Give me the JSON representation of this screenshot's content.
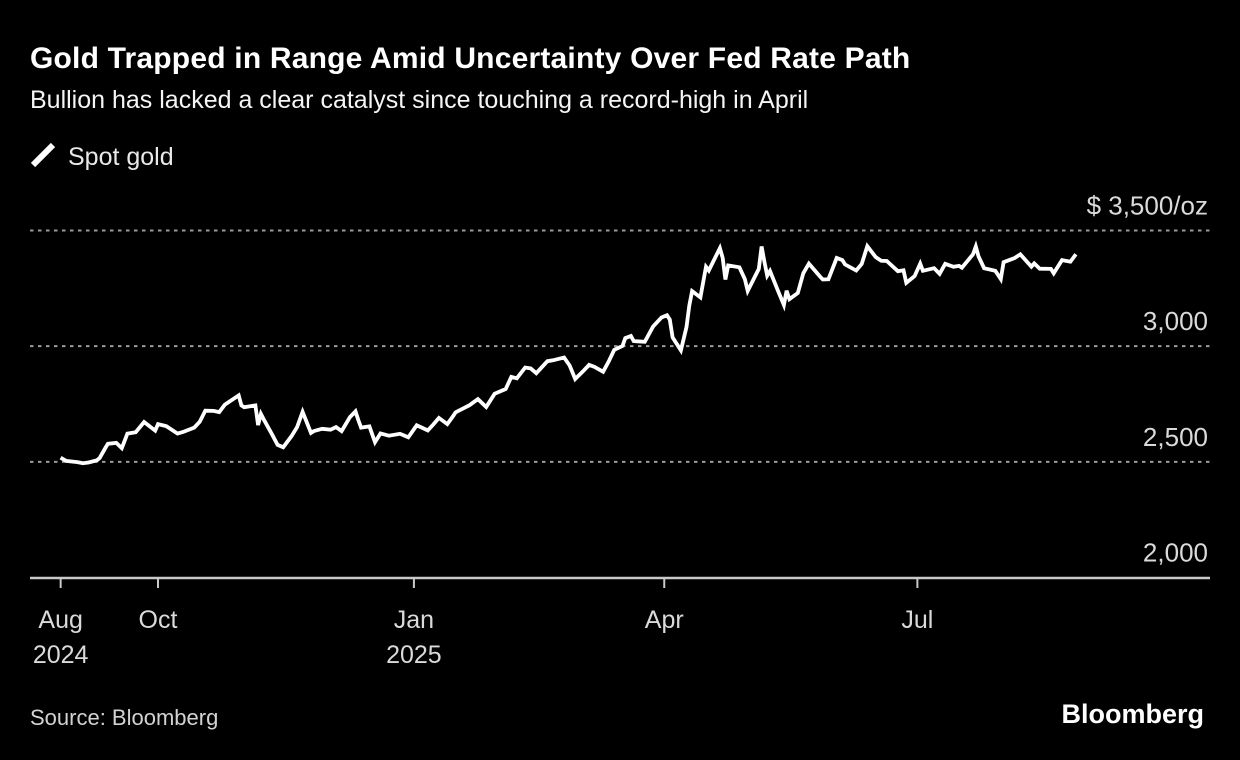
{
  "colors": {
    "background": "#000000",
    "series_line": "#ffffff",
    "gridline": "#9a9a9a",
    "axis": "#c9c9c9",
    "label_text": "#dadada"
  },
  "footer": {
    "source": "Source: Bloomberg",
    "logo": "Bloomberg"
  },
  "chart_data": {
    "type": "line",
    "title": "Gold Trapped in Range Amid Uncertainty Over Fed Rate Path",
    "subtitle": "Bullion has lacked a clear catalyst since touching a record-high in April",
    "legend": {
      "swatch_icon": "diagonal-line-icon",
      "label": "Spot gold",
      "position": "top-left"
    },
    "grid": "horizontal-dotted",
    "y_axis": {
      "side": "right",
      "range": [
        2000,
        3560
      ],
      "ticks": [
        {
          "value": 3500,
          "label": "$ 3,500/oz",
          "grid": "dotted"
        },
        {
          "value": 3000,
          "label": "3,000",
          "grid": "dotted"
        },
        {
          "value": 2500,
          "label": "2,500",
          "grid": "dotted"
        },
        {
          "value": 2000,
          "label": "2,000",
          "grid": "baseline"
        }
      ]
    },
    "x_axis": {
      "side": "bottom",
      "ticks": [
        {
          "date": "2024-08-27",
          "label": "Aug",
          "sublabel": "2024"
        },
        {
          "date": "2024-10-01",
          "label": "Oct",
          "sublabel": ""
        },
        {
          "date": "2025-01-01",
          "label": "Jan",
          "sublabel": "2025"
        },
        {
          "date": "2025-04-01",
          "label": "Apr",
          "sublabel": ""
        },
        {
          "date": "2025-07-01",
          "label": "Jul",
          "sublabel": ""
        }
      ]
    },
    "series": [
      {
        "name": "Spot gold",
        "color": "#ffffff",
        "points": [
          [
            "2024-08-27",
            2518
          ],
          [
            "2024-08-29",
            2504
          ],
          [
            "2024-09-02",
            2499
          ],
          [
            "2024-09-04",
            2494
          ],
          [
            "2024-09-06",
            2497
          ],
          [
            "2024-09-09",
            2506
          ],
          [
            "2024-09-10",
            2516
          ],
          [
            "2024-09-12",
            2558
          ],
          [
            "2024-09-13",
            2578
          ],
          [
            "2024-09-16",
            2582
          ],
          [
            "2024-09-18",
            2559
          ],
          [
            "2024-09-20",
            2622
          ],
          [
            "2024-09-23",
            2628
          ],
          [
            "2024-09-26",
            2672
          ],
          [
            "2024-09-30",
            2635
          ],
          [
            "2024-10-01",
            2663
          ],
          [
            "2024-10-04",
            2654
          ],
          [
            "2024-10-08",
            2622
          ],
          [
            "2024-10-10",
            2629
          ],
          [
            "2024-10-14",
            2648
          ],
          [
            "2024-10-16",
            2673
          ],
          [
            "2024-10-18",
            2721
          ],
          [
            "2024-10-21",
            2720
          ],
          [
            "2024-10-23",
            2715
          ],
          [
            "2024-10-25",
            2747
          ],
          [
            "2024-10-30",
            2787
          ],
          [
            "2024-10-31",
            2744
          ],
          [
            "2024-11-01",
            2736
          ],
          [
            "2024-11-05",
            2744
          ],
          [
            "2024-11-06",
            2659
          ],
          [
            "2024-11-07",
            2707
          ],
          [
            "2024-11-08",
            2684
          ],
          [
            "2024-11-11",
            2619
          ],
          [
            "2024-11-13",
            2573
          ],
          [
            "2024-11-15",
            2563
          ],
          [
            "2024-11-18",
            2611
          ],
          [
            "2024-11-20",
            2650
          ],
          [
            "2024-11-22",
            2716
          ],
          [
            "2024-11-25",
            2625
          ],
          [
            "2024-11-26",
            2633
          ],
          [
            "2024-11-29",
            2643
          ],
          [
            "2024-12-02",
            2639
          ],
          [
            "2024-12-04",
            2650
          ],
          [
            "2024-12-06",
            2633
          ],
          [
            "2024-12-09",
            2693
          ],
          [
            "2024-12-11",
            2718
          ],
          [
            "2024-12-12",
            2681
          ],
          [
            "2024-12-13",
            2648
          ],
          [
            "2024-12-16",
            2653
          ],
          [
            "2024-12-18",
            2585
          ],
          [
            "2024-12-20",
            2623
          ],
          [
            "2024-12-23",
            2613
          ],
          [
            "2024-12-27",
            2621
          ],
          [
            "2024-12-30",
            2606
          ],
          [
            "2025-01-02",
            2658
          ],
          [
            "2025-01-06",
            2636
          ],
          [
            "2025-01-08",
            2662
          ],
          [
            "2025-01-10",
            2690
          ],
          [
            "2025-01-13",
            2663
          ],
          [
            "2025-01-15",
            2696
          ],
          [
            "2025-01-16",
            2714
          ],
          [
            "2025-01-21",
            2745
          ],
          [
            "2025-01-24",
            2771
          ],
          [
            "2025-01-27",
            2737
          ],
          [
            "2025-01-30",
            2794
          ],
          [
            "2025-02-03",
            2815
          ],
          [
            "2025-02-05",
            2867
          ],
          [
            "2025-02-07",
            2861
          ],
          [
            "2025-02-10",
            2908
          ],
          [
            "2025-02-12",
            2904
          ],
          [
            "2025-02-14",
            2883
          ],
          [
            "2025-02-18",
            2935
          ],
          [
            "2025-02-20",
            2939
          ],
          [
            "2025-02-24",
            2951
          ],
          [
            "2025-02-26",
            2916
          ],
          [
            "2025-02-28",
            2858
          ],
          [
            "2025-03-03",
            2894
          ],
          [
            "2025-03-05",
            2919
          ],
          [
            "2025-03-07",
            2910
          ],
          [
            "2025-03-10",
            2889
          ],
          [
            "2025-03-12",
            2933
          ],
          [
            "2025-03-14",
            2984
          ],
          [
            "2025-03-17",
            3001
          ],
          [
            "2025-03-18",
            3035
          ],
          [
            "2025-03-20",
            3044
          ],
          [
            "2025-03-21",
            3022
          ],
          [
            "2025-03-25",
            3019
          ],
          [
            "2025-03-28",
            3085
          ],
          [
            "2025-03-31",
            3124
          ],
          [
            "2025-04-02",
            3134
          ],
          [
            "2025-04-03",
            3115
          ],
          [
            "2025-04-04",
            3038
          ],
          [
            "2025-04-07",
            2982
          ],
          [
            "2025-04-09",
            3083
          ],
          [
            "2025-04-10",
            3176
          ],
          [
            "2025-04-11",
            3238
          ],
          [
            "2025-04-14",
            3211
          ],
          [
            "2025-04-16",
            3343
          ],
          [
            "2025-04-17",
            3327
          ],
          [
            "2025-04-21",
            3424
          ],
          [
            "2025-04-22",
            3381
          ],
          [
            "2025-04-23",
            3288
          ],
          [
            "2025-04-24",
            3349
          ],
          [
            "2025-04-28",
            3341
          ],
          [
            "2025-04-30",
            3289
          ],
          [
            "2025-05-01",
            3239
          ],
          [
            "2025-05-05",
            3334
          ],
          [
            "2025-05-06",
            3431
          ],
          [
            "2025-05-07",
            3365
          ],
          [
            "2025-05-08",
            3305
          ],
          [
            "2025-05-09",
            3325
          ],
          [
            "2025-05-12",
            3236
          ],
          [
            "2025-05-14",
            3178
          ],
          [
            "2025-05-15",
            3240
          ],
          [
            "2025-05-16",
            3203
          ],
          [
            "2025-05-19",
            3230
          ],
          [
            "2025-05-21",
            3315
          ],
          [
            "2025-05-23",
            3357
          ],
          [
            "2025-05-27",
            3301
          ],
          [
            "2025-05-28",
            3288
          ],
          [
            "2025-05-30",
            3289
          ],
          [
            "2025-06-02",
            3381
          ],
          [
            "2025-06-04",
            3372
          ],
          [
            "2025-06-05",
            3353
          ],
          [
            "2025-06-09",
            3327
          ],
          [
            "2025-06-11",
            3355
          ],
          [
            "2025-06-13",
            3432
          ],
          [
            "2025-06-16",
            3385
          ],
          [
            "2025-06-18",
            3369
          ],
          [
            "2025-06-20",
            3368
          ],
          [
            "2025-06-24",
            3324
          ],
          [
            "2025-06-26",
            3328
          ],
          [
            "2025-06-27",
            3274
          ],
          [
            "2025-06-30",
            3303
          ],
          [
            "2025-07-02",
            3357
          ],
          [
            "2025-07-03",
            3326
          ],
          [
            "2025-07-07",
            3337
          ],
          [
            "2025-07-09",
            3313
          ],
          [
            "2025-07-11",
            3356
          ],
          [
            "2025-07-14",
            3343
          ],
          [
            "2025-07-16",
            3347
          ],
          [
            "2025-07-17",
            3339
          ],
          [
            "2025-07-21",
            3397
          ],
          [
            "2025-07-22",
            3431
          ],
          [
            "2025-07-23",
            3387
          ],
          [
            "2025-07-25",
            3337
          ],
          [
            "2025-07-29",
            3326
          ],
          [
            "2025-07-31",
            3290
          ],
          [
            "2025-08-01",
            3363
          ],
          [
            "2025-08-05",
            3381
          ],
          [
            "2025-08-07",
            3397
          ],
          [
            "2025-08-11",
            3344
          ],
          [
            "2025-08-12",
            3358
          ],
          [
            "2025-08-14",
            3335
          ],
          [
            "2025-08-18",
            3334
          ],
          [
            "2025-08-19",
            3315
          ],
          [
            "2025-08-22",
            3372
          ],
          [
            "2025-08-25",
            3365
          ],
          [
            "2025-08-27",
            3397
          ]
        ]
      }
    ]
  }
}
